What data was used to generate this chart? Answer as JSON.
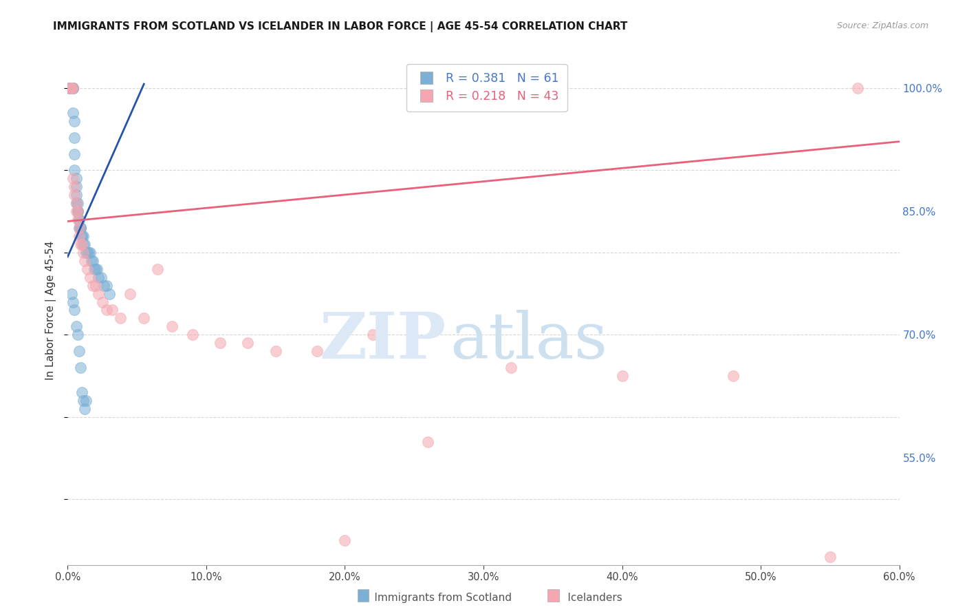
{
  "title": "IMMIGRANTS FROM SCOTLAND VS ICELANDER IN LABOR FORCE | AGE 45-54 CORRELATION CHART",
  "source": "Source: ZipAtlas.com",
  "ylabel": "In Labor Force | Age 45-54",
  "xlim": [
    0.0,
    0.6
  ],
  "ylim": [
    0.42,
    1.04
  ],
  "xticks": [
    0.0,
    0.1,
    0.2,
    0.3,
    0.4,
    0.5,
    0.6
  ],
  "yticks_right": [
    0.55,
    0.7,
    0.85,
    1.0
  ],
  "blue_color": "#7BAFD4",
  "pink_color": "#F4A7B0",
  "blue_line_color": "#2255AA",
  "pink_line_color": "#E8607A",
  "R_blue": 0.381,
  "N_blue": 61,
  "R_pink": 0.218,
  "N_pink": 43,
  "blue_trend_x0": 0.0,
  "blue_trend_y0": 0.795,
  "blue_trend_x1": 0.055,
  "blue_trend_y1": 1.005,
  "pink_trend_x0": 0.0,
  "pink_trend_y0": 0.838,
  "pink_trend_x1": 0.6,
  "pink_trend_y1": 0.935,
  "blue_x": [
    0.001,
    0.002,
    0.002,
    0.003,
    0.003,
    0.003,
    0.003,
    0.003,
    0.004,
    0.004,
    0.004,
    0.004,
    0.004,
    0.005,
    0.005,
    0.005,
    0.005,
    0.006,
    0.006,
    0.006,
    0.006,
    0.007,
    0.007,
    0.007,
    0.007,
    0.008,
    0.008,
    0.008,
    0.009,
    0.009,
    0.009,
    0.01,
    0.01,
    0.011,
    0.011,
    0.012,
    0.013,
    0.014,
    0.015,
    0.016,
    0.017,
    0.018,
    0.019,
    0.02,
    0.021,
    0.022,
    0.024,
    0.026,
    0.028,
    0.03,
    0.003,
    0.004,
    0.005,
    0.006,
    0.007,
    0.008,
    0.009,
    0.01,
    0.011,
    0.012,
    0.013
  ],
  "blue_y": [
    1.0,
    1.0,
    1.0,
    1.0,
    1.0,
    1.0,
    1.0,
    1.0,
    1.0,
    1.0,
    1.0,
    1.0,
    0.97,
    0.96,
    0.94,
    0.92,
    0.9,
    0.89,
    0.88,
    0.87,
    0.86,
    0.86,
    0.85,
    0.85,
    0.85,
    0.84,
    0.84,
    0.83,
    0.83,
    0.83,
    0.83,
    0.82,
    0.82,
    0.82,
    0.81,
    0.81,
    0.8,
    0.8,
    0.8,
    0.8,
    0.79,
    0.79,
    0.78,
    0.78,
    0.78,
    0.77,
    0.77,
    0.76,
    0.76,
    0.75,
    0.75,
    0.74,
    0.73,
    0.71,
    0.7,
    0.68,
    0.66,
    0.63,
    0.62,
    0.61,
    0.62
  ],
  "pink_x": [
    0.002,
    0.003,
    0.003,
    0.004,
    0.004,
    0.005,
    0.005,
    0.006,
    0.006,
    0.007,
    0.007,
    0.008,
    0.008,
    0.009,
    0.01,
    0.011,
    0.012,
    0.014,
    0.016,
    0.018,
    0.02,
    0.022,
    0.025,
    0.028,
    0.032,
    0.038,
    0.045,
    0.055,
    0.065,
    0.075,
    0.09,
    0.11,
    0.13,
    0.15,
    0.18,
    0.22,
    0.26,
    0.32,
    0.4,
    0.48,
    0.55,
    0.57,
    0.2
  ],
  "pink_y": [
    1.0,
    1.0,
    1.0,
    1.0,
    0.89,
    0.88,
    0.87,
    0.86,
    0.85,
    0.85,
    0.84,
    0.83,
    0.82,
    0.81,
    0.81,
    0.8,
    0.79,
    0.78,
    0.77,
    0.76,
    0.76,
    0.75,
    0.74,
    0.73,
    0.73,
    0.72,
    0.75,
    0.72,
    0.78,
    0.71,
    0.7,
    0.69,
    0.69,
    0.68,
    0.68,
    0.7,
    0.57,
    0.66,
    0.65,
    0.65,
    0.43,
    1.0,
    0.45
  ]
}
